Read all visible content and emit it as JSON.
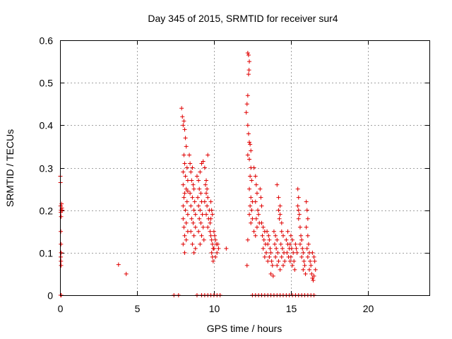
{
  "chart_data": {
    "type": "scatter",
    "title": "Day 345 of 2015, SRMTID for receiver sur4",
    "xlabel": "GPS time / hours",
    "ylabel": "SRMTID / TECUs",
    "xlim": [
      0,
      24
    ],
    "ylim": [
      0,
      0.6
    ],
    "x_ticks": [
      0,
      5,
      10,
      15,
      20
    ],
    "x_tick_labels": [
      "0",
      "5",
      "10",
      "15",
      "20"
    ],
    "y_ticks": [
      0,
      0.1,
      0.2,
      0.3,
      0.4,
      0.5,
      0.6
    ],
    "y_tick_labels": [
      "0",
      "0.1",
      "0.2",
      "0.3",
      "0.4",
      "0.5",
      "0.6"
    ],
    "grid": true,
    "marker": "plus",
    "color": "#e00000",
    "series": [
      {
        "name": "SRMTID",
        "points": [
          [
            0.02,
            0.28
          ],
          [
            0.03,
            0.265
          ],
          [
            0.04,
            0.21
          ],
          [
            0.05,
            0.195
          ],
          [
            0.06,
            0.2
          ],
          [
            0.07,
            0.185
          ],
          [
            0.05,
            0.15
          ],
          [
            0.06,
            0.12
          ],
          [
            0.07,
            0.1
          ],
          [
            0.05,
            0.09
          ],
          [
            0.06,
            0.08
          ],
          [
            0.07,
            0.07
          ],
          [
            0.1,
            0.215
          ],
          [
            0.12,
            0.205
          ],
          [
            0.14,
            0.2
          ],
          [
            0.04,
            0.0
          ],
          [
            0.08,
            0.0
          ],
          [
            3.8,
            0.072
          ],
          [
            4.3,
            0.05
          ],
          [
            7.4,
            0.0
          ],
          [
            7.7,
            0.0
          ],
          [
            7.9,
            0.44
          ],
          [
            7.95,
            0.42
          ],
          [
            8.0,
            0.4
          ],
          [
            8.05,
            0.41
          ],
          [
            8.1,
            0.39
          ],
          [
            8.15,
            0.37
          ],
          [
            8.05,
            0.33
          ],
          [
            8.2,
            0.35
          ],
          [
            8.1,
            0.31
          ],
          [
            8.25,
            0.3
          ],
          [
            8.0,
            0.29
          ],
          [
            8.15,
            0.28
          ],
          [
            8.3,
            0.27
          ],
          [
            8.0,
            0.26
          ],
          [
            8.2,
            0.25
          ],
          [
            8.1,
            0.24
          ],
          [
            8.3,
            0.245
          ],
          [
            8.05,
            0.23
          ],
          [
            8.25,
            0.22
          ],
          [
            8.0,
            0.21
          ],
          [
            8.15,
            0.2
          ],
          [
            8.3,
            0.19
          ],
          [
            8.0,
            0.18
          ],
          [
            8.2,
            0.17
          ],
          [
            8.05,
            0.16
          ],
          [
            8.3,
            0.15
          ],
          [
            8.1,
            0.14
          ],
          [
            8.2,
            0.13
          ],
          [
            8.0,
            0.12
          ],
          [
            8.1,
            0.1
          ],
          [
            8.4,
            0.33
          ],
          [
            8.45,
            0.31
          ],
          [
            8.5,
            0.29
          ],
          [
            8.6,
            0.3
          ],
          [
            8.55,
            0.27
          ],
          [
            8.65,
            0.26
          ],
          [
            8.7,
            0.25
          ],
          [
            8.45,
            0.24
          ],
          [
            8.6,
            0.23
          ],
          [
            8.75,
            0.22
          ],
          [
            8.5,
            0.21
          ],
          [
            8.7,
            0.2
          ],
          [
            8.8,
            0.19
          ],
          [
            8.55,
            0.18
          ],
          [
            8.65,
            0.17
          ],
          [
            8.8,
            0.16
          ],
          [
            8.5,
            0.15
          ],
          [
            8.7,
            0.14
          ],
          [
            8.6,
            0.12
          ],
          [
            8.8,
            0.11
          ],
          [
            8.7,
            0.1
          ],
          [
            8.9,
            0.28
          ],
          [
            9.0,
            0.27
          ],
          [
            9.1,
            0.29
          ],
          [
            9.05,
            0.25
          ],
          [
            9.15,
            0.24
          ],
          [
            8.95,
            0.23
          ],
          [
            9.2,
            0.22
          ],
          [
            9.0,
            0.21
          ],
          [
            9.1,
            0.2
          ],
          [
            9.25,
            0.19
          ],
          [
            9.05,
            0.18
          ],
          [
            9.15,
            0.17
          ],
          [
            9.3,
            0.16
          ],
          [
            9.0,
            0.15
          ],
          [
            9.2,
            0.14
          ],
          [
            9.35,
            0.13
          ],
          [
            9.1,
            0.12
          ],
          [
            9.2,
            0.31
          ],
          [
            9.3,
            0.315
          ],
          [
            9.4,
            0.3
          ],
          [
            9.5,
            0.27
          ],
          [
            9.45,
            0.26
          ],
          [
            9.55,
            0.25
          ],
          [
            9.6,
            0.33
          ],
          [
            9.5,
            0.24
          ],
          [
            9.6,
            0.23
          ],
          [
            9.4,
            0.22
          ],
          [
            9.55,
            0.21
          ],
          [
            9.7,
            0.2
          ],
          [
            9.5,
            0.19
          ],
          [
            9.65,
            0.18
          ],
          [
            9.75,
            0.17
          ],
          [
            9.6,
            0.16
          ],
          [
            9.8,
            0.22
          ],
          [
            9.85,
            0.2
          ],
          [
            9.9,
            0.19
          ],
          [
            9.8,
            0.18
          ],
          [
            9.75,
            0.15
          ],
          [
            9.8,
            0.14
          ],
          [
            9.85,
            0.13
          ],
          [
            9.9,
            0.12
          ],
          [
            9.95,
            0.11
          ],
          [
            9.85,
            0.1
          ],
          [
            9.9,
            0.09
          ],
          [
            10.0,
            0.15
          ],
          [
            10.05,
            0.14
          ],
          [
            10.1,
            0.13
          ],
          [
            10.15,
            0.12
          ],
          [
            10.0,
            0.11
          ],
          [
            10.2,
            0.1
          ],
          [
            10.1,
            0.09
          ],
          [
            9.95,
            0.08
          ],
          [
            10.25,
            0.12
          ],
          [
            10.3,
            0.11
          ],
          [
            10.8,
            0.11
          ],
          [
            9.2,
            0.0
          ],
          [
            9.4,
            0.0
          ],
          [
            9.6,
            0.0
          ],
          [
            9.8,
            0.0
          ],
          [
            10.0,
            0.0
          ],
          [
            10.2,
            0.0
          ],
          [
            10.4,
            0.0
          ],
          [
            8.9,
            0.0
          ],
          [
            12.2,
            0.57
          ],
          [
            12.25,
            0.565
          ],
          [
            12.3,
            0.55
          ],
          [
            12.28,
            0.53
          ],
          [
            12.25,
            0.52
          ],
          [
            12.2,
            0.47
          ],
          [
            12.15,
            0.45
          ],
          [
            12.1,
            0.43
          ],
          [
            12.2,
            0.4
          ],
          [
            12.25,
            0.38
          ],
          [
            12.3,
            0.36
          ],
          [
            12.35,
            0.355
          ],
          [
            12.4,
            0.34
          ],
          [
            12.2,
            0.33
          ],
          [
            12.3,
            0.32
          ],
          [
            12.4,
            0.3
          ],
          [
            12.35,
            0.28
          ],
          [
            12.45,
            0.27
          ],
          [
            12.3,
            0.25
          ],
          [
            12.4,
            0.23
          ],
          [
            12.5,
            0.22
          ],
          [
            12.35,
            0.21
          ],
          [
            12.45,
            0.2
          ],
          [
            12.3,
            0.19
          ],
          [
            12.5,
            0.18
          ],
          [
            12.4,
            0.17
          ],
          [
            12.2,
            0.13
          ],
          [
            12.15,
            0.07
          ],
          [
            12.6,
            0.3
          ],
          [
            12.7,
            0.28
          ],
          [
            12.75,
            0.26
          ],
          [
            12.8,
            0.24
          ],
          [
            12.7,
            0.22
          ],
          [
            12.85,
            0.2
          ],
          [
            12.9,
            0.19
          ],
          [
            12.75,
            0.18
          ],
          [
            12.95,
            0.17
          ],
          [
            12.8,
            0.16
          ],
          [
            13.0,
            0.25
          ],
          [
            13.05,
            0.23
          ],
          [
            13.1,
            0.21
          ],
          [
            12.6,
            0.15
          ],
          [
            12.7,
            0.14
          ],
          [
            13.1,
            0.17
          ],
          [
            13.2,
            0.16
          ],
          [
            13.3,
            0.15
          ],
          [
            13.15,
            0.14
          ],
          [
            13.25,
            0.13
          ],
          [
            13.35,
            0.12
          ],
          [
            13.2,
            0.11
          ],
          [
            13.4,
            0.1
          ],
          [
            13.3,
            0.09
          ],
          [
            13.5,
            0.08
          ],
          [
            13.45,
            0.15
          ],
          [
            13.55,
            0.14
          ],
          [
            13.6,
            0.13
          ],
          [
            13.5,
            0.12
          ],
          [
            13.65,
            0.11
          ],
          [
            13.7,
            0.1
          ],
          [
            13.6,
            0.09
          ],
          [
            13.75,
            0.08
          ],
          [
            13.8,
            0.07
          ],
          [
            13.7,
            0.05
          ],
          [
            13.85,
            0.045
          ],
          [
            13.9,
            0.15
          ],
          [
            14.0,
            0.14
          ],
          [
            14.1,
            0.13
          ],
          [
            13.95,
            0.12
          ],
          [
            14.05,
            0.11
          ],
          [
            14.15,
            0.1
          ],
          [
            14.0,
            0.09
          ],
          [
            14.2,
            0.08
          ],
          [
            14.1,
            0.07
          ],
          [
            14.3,
            0.06
          ],
          [
            14.2,
            0.2
          ],
          [
            14.3,
            0.19
          ],
          [
            14.25,
            0.18
          ],
          [
            14.4,
            0.17
          ],
          [
            14.1,
            0.26
          ],
          [
            14.2,
            0.23
          ],
          [
            14.3,
            0.21
          ],
          [
            14.4,
            0.15
          ],
          [
            14.5,
            0.14
          ],
          [
            14.35,
            0.12
          ],
          [
            14.45,
            0.11
          ],
          [
            14.55,
            0.1
          ],
          [
            14.4,
            0.09
          ],
          [
            14.6,
            0.08
          ],
          [
            14.5,
            0.07
          ],
          [
            14.7,
            0.13
          ],
          [
            14.8,
            0.12
          ],
          [
            14.9,
            0.11
          ],
          [
            14.75,
            0.1
          ],
          [
            14.85,
            0.09
          ],
          [
            14.95,
            0.08
          ],
          [
            14.8,
            0.15
          ],
          [
            15.0,
            0.14
          ],
          [
            15.1,
            0.13
          ],
          [
            14.95,
            0.12
          ],
          [
            15.05,
            0.11
          ],
          [
            15.15,
            0.1
          ],
          [
            15.0,
            0.09
          ],
          [
            15.2,
            0.08
          ],
          [
            15.1,
            0.07
          ],
          [
            15.25,
            0.06
          ],
          [
            15.3,
            0.12
          ],
          [
            15.35,
            0.11
          ],
          [
            15.4,
            0.1
          ],
          [
            15.45,
            0.21
          ],
          [
            15.5,
            0.2
          ],
          [
            15.55,
            0.19
          ],
          [
            15.5,
            0.18
          ],
          [
            15.45,
            0.25
          ],
          [
            15.5,
            0.23
          ],
          [
            15.6,
            0.16
          ],
          [
            15.65,
            0.14
          ],
          [
            15.7,
            0.13
          ],
          [
            15.6,
            0.12
          ],
          [
            15.75,
            0.11
          ],
          [
            15.8,
            0.1
          ],
          [
            15.7,
            0.09
          ],
          [
            15.85,
            0.08
          ],
          [
            15.9,
            0.07
          ],
          [
            15.8,
            0.06
          ],
          [
            15.95,
            0.05
          ],
          [
            16.0,
            0.22
          ],
          [
            16.05,
            0.2
          ],
          [
            16.1,
            0.18
          ],
          [
            16.0,
            0.16
          ],
          [
            16.1,
            0.14
          ],
          [
            16.15,
            0.12
          ],
          [
            16.05,
            0.11
          ],
          [
            16.2,
            0.1
          ],
          [
            16.1,
            0.09
          ],
          [
            16.25,
            0.08
          ],
          [
            16.3,
            0.07
          ],
          [
            16.2,
            0.06
          ],
          [
            16.35,
            0.05
          ],
          [
            16.4,
            0.04
          ],
          [
            16.45,
            0.035
          ],
          [
            16.5,
            0.045
          ],
          [
            16.4,
            0.1
          ],
          [
            16.5,
            0.09
          ],
          [
            16.55,
            0.08
          ],
          [
            16.6,
            0.06
          ],
          [
            12.5,
            0.0
          ],
          [
            12.7,
            0.0
          ],
          [
            12.9,
            0.0
          ],
          [
            13.1,
            0.0
          ],
          [
            13.3,
            0.0
          ],
          [
            13.5,
            0.0
          ],
          [
            13.7,
            0.0
          ],
          [
            13.9,
            0.0
          ],
          [
            14.1,
            0.0
          ],
          [
            14.3,
            0.0
          ],
          [
            14.5,
            0.0
          ],
          [
            14.7,
            0.0
          ],
          [
            14.9,
            0.0
          ],
          [
            15.1,
            0.0
          ],
          [
            15.3,
            0.0
          ],
          [
            15.5,
            0.0
          ],
          [
            15.7,
            0.0
          ],
          [
            15.9,
            0.0
          ],
          [
            16.1,
            0.0
          ],
          [
            16.3,
            0.0
          ],
          [
            16.5,
            0.0
          ]
        ]
      }
    ]
  }
}
